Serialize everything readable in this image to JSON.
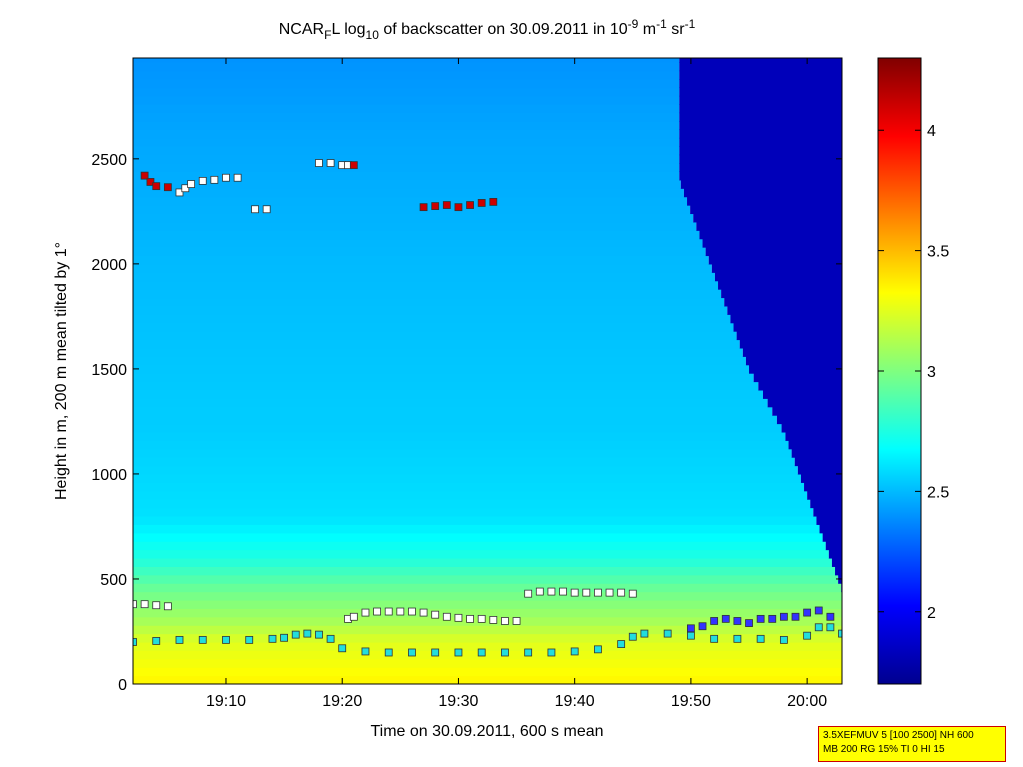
{
  "chart_data": {
    "type": "heatmap",
    "title": {
      "p1": "NCAR",
      "p1_sub": "F",
      "p2": "L log",
      "p2_sub": "10",
      "p3": " of backscatter on 30.09.2011 in 10",
      "p3_sup": "-9",
      "p4": " m",
      "p4_sup": "-1",
      "p5": " sr",
      "p5_sup": "-1"
    },
    "xlabel": "Time on 30.09.2011, 600 s mean",
    "ylabel": "Height in m, 200 m mean tilted by 1°",
    "x_range_min": [
      1142,
      1203
    ],
    "x_ticks": [
      {
        "value": 1150,
        "label": "19:10"
      },
      {
        "value": 1160,
        "label": "19:20"
      },
      {
        "value": 1170,
        "label": "19:30"
      },
      {
        "value": 1180,
        "label": "19:40"
      },
      {
        "value": 1190,
        "label": "19:50"
      },
      {
        "value": 1200,
        "label": "20:00"
      }
    ],
    "ylim": [
      0,
      2980
    ],
    "y_ticks": [
      0,
      500,
      1000,
      1500,
      2000,
      2500
    ],
    "colorbar": {
      "range": [
        1.7,
        4.3
      ],
      "ticks": [
        2,
        2.5,
        3,
        3.5,
        4
      ],
      "colormap": "jet"
    },
    "backscatter_profile": [
      {
        "h": 0,
        "v": 3.35
      },
      {
        "h": 100,
        "v": 3.3
      },
      {
        "h": 200,
        "v": 3.25
      },
      {
        "h": 300,
        "v": 3.1
      },
      {
        "h": 450,
        "v": 2.95
      },
      {
        "h": 600,
        "v": 2.75
      },
      {
        "h": 800,
        "v": 2.6
      },
      {
        "h": 1200,
        "v": 2.55
      },
      {
        "h": 2000,
        "v": 2.5
      },
      {
        "h": 2600,
        "v": 2.45
      },
      {
        "h": 2980,
        "v": 2.4
      }
    ],
    "clear_boundary": [
      {
        "h": 0,
        "t": 1203
      },
      {
        "h": 450,
        "t": 1203
      },
      {
        "h": 600,
        "t": 1202
      },
      {
        "h": 900,
        "t": 1200
      },
      {
        "h": 1200,
        "t": 1198
      },
      {
        "h": 1500,
        "t": 1195
      },
      {
        "h": 1800,
        "t": 1193
      },
      {
        "h": 2100,
        "t": 1191
      },
      {
        "h": 2400,
        "t": 1189
      },
      {
        "h": 2980,
        "t": 1189
      }
    ],
    "series": [
      {
        "name": "layer_top",
        "color": "#ffffff",
        "points": [
          [
            1142,
            380
          ],
          [
            1143,
            380
          ],
          [
            1144,
            375
          ],
          [
            1145,
            370
          ],
          [
            1160.5,
            310
          ],
          [
            1161,
            320
          ],
          [
            1162,
            340
          ],
          [
            1163,
            345
          ],
          [
            1164,
            345
          ],
          [
            1165,
            345
          ],
          [
            1166,
            345
          ],
          [
            1167,
            340
          ],
          [
            1168,
            330
          ],
          [
            1169,
            320
          ],
          [
            1170,
            315
          ],
          [
            1171,
            310
          ],
          [
            1172,
            310
          ],
          [
            1173,
            305
          ],
          [
            1174,
            300
          ],
          [
            1175,
            300
          ],
          [
            1176,
            430
          ],
          [
            1177,
            440
          ],
          [
            1178,
            440
          ],
          [
            1179,
            440
          ],
          [
            1180,
            435
          ],
          [
            1181,
            435
          ],
          [
            1182,
            435
          ],
          [
            1183,
            435
          ],
          [
            1184,
            435
          ],
          [
            1185,
            430
          ],
          [
            1146,
            2340
          ],
          [
            1146.5,
            2360
          ],
          [
            1147,
            2380
          ],
          [
            1148,
            2395
          ],
          [
            1149,
            2400
          ],
          [
            1150,
            2410
          ],
          [
            1151,
            2410
          ],
          [
            1152.5,
            2260
          ],
          [
            1153.5,
            2260
          ],
          [
            1158,
            2480
          ],
          [
            1159,
            2480
          ],
          [
            1160,
            2470
          ],
          [
            1160.5,
            2470
          ]
        ]
      },
      {
        "name": "cloud_base",
        "color": "#cc0000",
        "points": [
          [
            1143,
            2420
          ],
          [
            1143.5,
            2390
          ],
          [
            1144,
            2370
          ],
          [
            1145,
            2365
          ],
          [
            1161,
            2470
          ],
          [
            1167,
            2270
          ],
          [
            1168,
            2275
          ],
          [
            1169,
            2280
          ],
          [
            1170,
            2270
          ],
          [
            1171,
            2280
          ],
          [
            1172,
            2290
          ],
          [
            1173,
            2295
          ]
        ]
      },
      {
        "name": "mixing_layer",
        "color": "#22dddd",
        "points": [
          [
            1142,
            200
          ],
          [
            1144,
            205
          ],
          [
            1146,
            210
          ],
          [
            1148,
            210
          ],
          [
            1150,
            210
          ],
          [
            1152,
            210
          ],
          [
            1154,
            215
          ],
          [
            1155,
            220
          ],
          [
            1156,
            235
          ],
          [
            1157,
            240
          ],
          [
            1158,
            235
          ],
          [
            1159,
            215
          ],
          [
            1160,
            170
          ],
          [
            1162,
            155
          ],
          [
            1164,
            150
          ],
          [
            1166,
            150
          ],
          [
            1168,
            150
          ],
          [
            1170,
            150
          ],
          [
            1172,
            150
          ],
          [
            1174,
            150
          ],
          [
            1176,
            150
          ],
          [
            1178,
            150
          ],
          [
            1180,
            155
          ],
          [
            1182,
            165
          ],
          [
            1184,
            190
          ],
          [
            1185,
            225
          ],
          [
            1186,
            240
          ],
          [
            1188,
            240
          ],
          [
            1190,
            230
          ],
          [
            1192,
            215
          ],
          [
            1194,
            215
          ],
          [
            1196,
            215
          ],
          [
            1198,
            210
          ],
          [
            1200,
            230
          ],
          [
            1201,
            270
          ],
          [
            1202,
            270
          ],
          [
            1203,
            240
          ]
        ]
      },
      {
        "name": "aerosol_layer",
        "color": "#3333ff",
        "points": [
          [
            1190,
            265
          ],
          [
            1191,
            275
          ],
          [
            1192,
            300
          ],
          [
            1193,
            310
          ],
          [
            1194,
            300
          ],
          [
            1195,
            290
          ],
          [
            1196,
            310
          ],
          [
            1197,
            310
          ],
          [
            1198,
            320
          ],
          [
            1199,
            320
          ],
          [
            1200,
            340
          ],
          [
            1201,
            350
          ],
          [
            1202,
            320
          ]
        ]
      }
    ],
    "info_box": {
      "line1": "3.5XEFMUV 5 [100 2500] NH 600",
      "line2": "MB 200 RG 15% TI 0 HI 15"
    }
  }
}
